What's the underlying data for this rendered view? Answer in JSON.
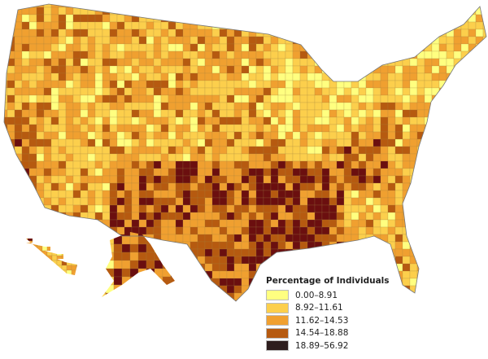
{
  "legend": {
    "title": "Percentage of Individuals",
    "classes": [
      {
        "label": "0.00–8.91",
        "color": "#ffff80"
      },
      {
        "label": "8.92–11.61",
        "color": "#fccf4c"
      },
      {
        "label": "11.62–14.53",
        "color": "#f0a030"
      },
      {
        "label": "14.54–18.88",
        "color": "#b65a10"
      },
      {
        "label": "18.89–56.92",
        "color": "#2e1e1e"
      }
    ]
  },
  "map": {
    "highest_class_fill": "#6b0f0f",
    "border_color": "#777777"
  }
}
